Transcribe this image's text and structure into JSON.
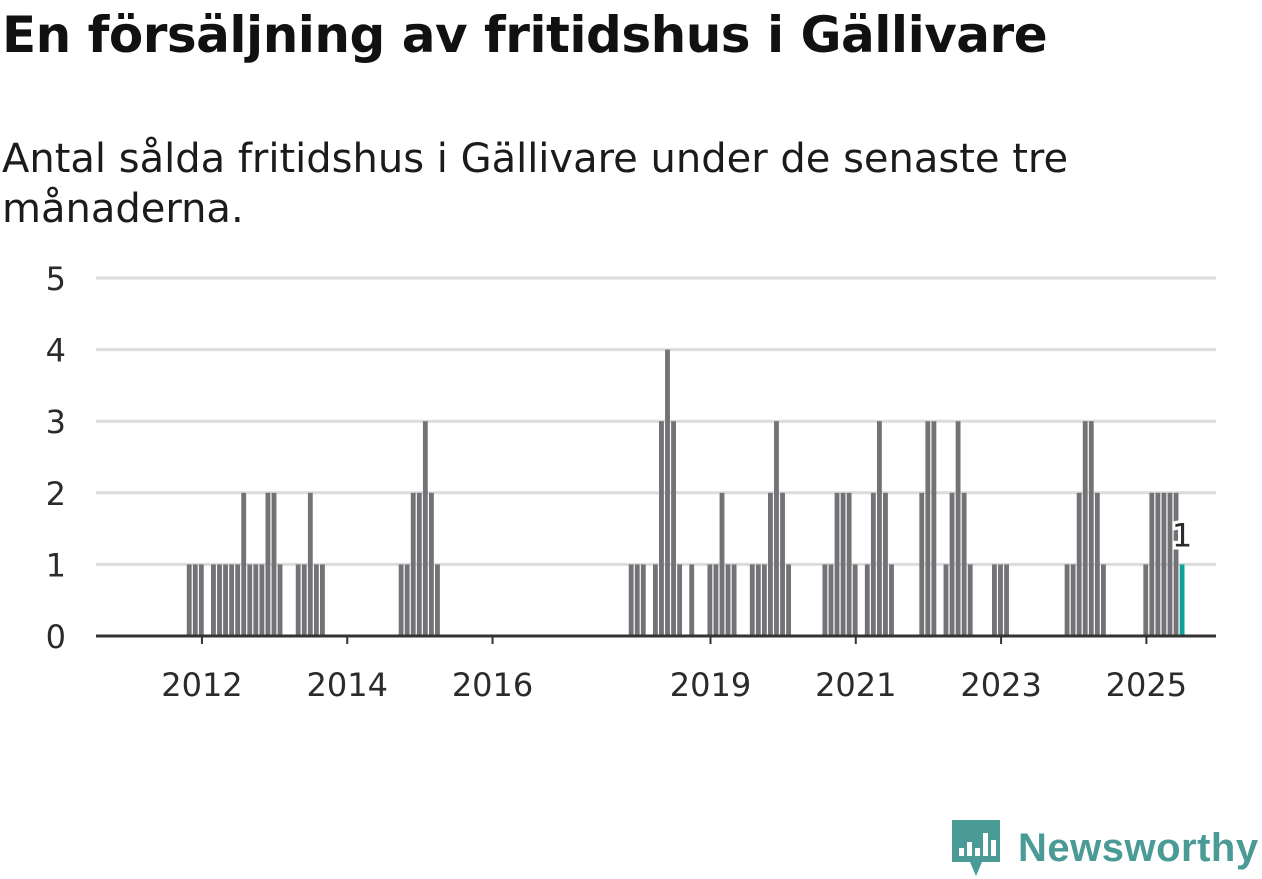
{
  "title": "En försäljning av fritidshus i Gällivare",
  "subtitle": "Antal sålda fritidshus i Gällivare under de senaste tre månaderna.",
  "brand": {
    "name": "Newsworthy",
    "color": "#4a9a96",
    "icon": "newsworthy-logo-icon"
  },
  "colors": {
    "bar": "#737277",
    "highlight": "#12a19a",
    "grid": "#dcdcdc",
    "axis": "#333333"
  },
  "chart_data": {
    "type": "bar",
    "title": "En försäljning av fritidshus i Gällivare",
    "xlabel": "",
    "ylabel": "",
    "ylim": [
      0,
      5
    ],
    "y_ticks": [
      0,
      1,
      2,
      3,
      4,
      5
    ],
    "x_ticks": [
      "2012",
      "2014",
      "2016",
      "2019",
      "2021",
      "2023",
      "2025"
    ],
    "x_range": [
      "2011-01",
      "2026-06"
    ],
    "last_value_label": "1",
    "series": [
      {
        "name": "Antal sålda fritidshus",
        "points": [
          {
            "month": "2012-04",
            "value": 1
          },
          {
            "month": "2012-05",
            "value": 1
          },
          {
            "month": "2012-06",
            "value": 1
          },
          {
            "month": "2012-08",
            "value": 1
          },
          {
            "month": "2012-09",
            "value": 1
          },
          {
            "month": "2012-10",
            "value": 1
          },
          {
            "month": "2012-11",
            "value": 1
          },
          {
            "month": "2012-12",
            "value": 1
          },
          {
            "month": "2013-01",
            "value": 2
          },
          {
            "month": "2013-02",
            "value": 1
          },
          {
            "month": "2013-03",
            "value": 1
          },
          {
            "month": "2013-04",
            "value": 1
          },
          {
            "month": "2013-05",
            "value": 2
          },
          {
            "month": "2013-06",
            "value": 2
          },
          {
            "month": "2013-07",
            "value": 1
          },
          {
            "month": "2013-10",
            "value": 1
          },
          {
            "month": "2013-11",
            "value": 1
          },
          {
            "month": "2013-12",
            "value": 2
          },
          {
            "month": "2014-01",
            "value": 1
          },
          {
            "month": "2014-02",
            "value": 1
          },
          {
            "month": "2015-03",
            "value": 1
          },
          {
            "month": "2015-04",
            "value": 1
          },
          {
            "month": "2015-05",
            "value": 2
          },
          {
            "month": "2015-06",
            "value": 2
          },
          {
            "month": "2015-07",
            "value": 3
          },
          {
            "month": "2015-08",
            "value": 2
          },
          {
            "month": "2015-09",
            "value": 1
          },
          {
            "month": "2018-05",
            "value": 1
          },
          {
            "month": "2018-06",
            "value": 1
          },
          {
            "month": "2018-07",
            "value": 1
          },
          {
            "month": "2018-09",
            "value": 1
          },
          {
            "month": "2018-10",
            "value": 3
          },
          {
            "month": "2018-11",
            "value": 4
          },
          {
            "month": "2018-12",
            "value": 3
          },
          {
            "month": "2019-01",
            "value": 1
          },
          {
            "month": "2019-03",
            "value": 1
          },
          {
            "month": "2019-06",
            "value": 1
          },
          {
            "month": "2019-07",
            "value": 1
          },
          {
            "month": "2019-08",
            "value": 2
          },
          {
            "month": "2019-09",
            "value": 1
          },
          {
            "month": "2019-10",
            "value": 1
          },
          {
            "month": "2020-01",
            "value": 1
          },
          {
            "month": "2020-02",
            "value": 1
          },
          {
            "month": "2020-03",
            "value": 1
          },
          {
            "month": "2020-04",
            "value": 2
          },
          {
            "month": "2020-05",
            "value": 3
          },
          {
            "month": "2020-06",
            "value": 2
          },
          {
            "month": "2020-07",
            "value": 1
          },
          {
            "month": "2021-01",
            "value": 1
          },
          {
            "month": "2021-02",
            "value": 1
          },
          {
            "month": "2021-03",
            "value": 2
          },
          {
            "month": "2021-04",
            "value": 2
          },
          {
            "month": "2021-05",
            "value": 2
          },
          {
            "month": "2021-06",
            "value": 1
          },
          {
            "month": "2021-08",
            "value": 1
          },
          {
            "month": "2021-09",
            "value": 2
          },
          {
            "month": "2021-10",
            "value": 3
          },
          {
            "month": "2021-11",
            "value": 2
          },
          {
            "month": "2021-12",
            "value": 1
          },
          {
            "month": "2022-05",
            "value": 2
          },
          {
            "month": "2022-06",
            "value": 3
          },
          {
            "month": "2022-07",
            "value": 3
          },
          {
            "month": "2022-09",
            "value": 1
          },
          {
            "month": "2022-10",
            "value": 2
          },
          {
            "month": "2022-11",
            "value": 3
          },
          {
            "month": "2022-12",
            "value": 2
          },
          {
            "month": "2023-01",
            "value": 1
          },
          {
            "month": "2023-05",
            "value": 1
          },
          {
            "month": "2023-06",
            "value": 1
          },
          {
            "month": "2023-07",
            "value": 1
          },
          {
            "month": "2024-05",
            "value": 1
          },
          {
            "month": "2024-06",
            "value": 1
          },
          {
            "month": "2024-07",
            "value": 2
          },
          {
            "month": "2024-08",
            "value": 3
          },
          {
            "month": "2024-09",
            "value": 3
          },
          {
            "month": "2024-10",
            "value": 2
          },
          {
            "month": "2024-11",
            "value": 1
          },
          {
            "month": "2025-06",
            "value": 1
          },
          {
            "month": "2025-07",
            "value": 2
          },
          {
            "month": "2025-08",
            "value": 2
          },
          {
            "month": "2025-09",
            "value": 2
          },
          {
            "month": "2025-10",
            "value": 2
          },
          {
            "month": "2025-11",
            "value": 2
          },
          {
            "month": "2025-12",
            "value": 1
          }
        ]
      }
    ]
  }
}
